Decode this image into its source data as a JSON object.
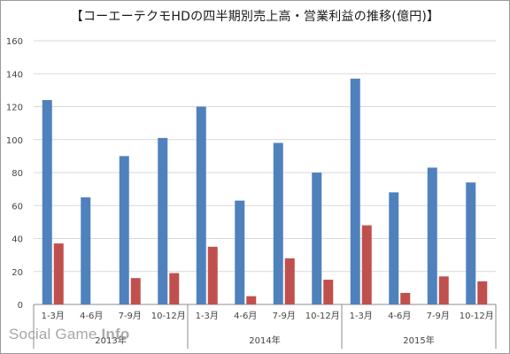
{
  "chart_data": {
    "type": "bar",
    "title": "【コーエーテクモHDの四半期別売上高・営業利益の推移(億円)】",
    "categories": [
      "1-3月",
      "4-6月",
      "7-9月",
      "10-12月",
      "1-3月",
      "4-6月",
      "7-9月",
      "10-12月",
      "1-3月",
      "4-6月",
      "7-9月",
      "10-12月"
    ],
    "groups": [
      {
        "label": "2013年",
        "span": 4
      },
      {
        "label": "2014年",
        "span": 4
      },
      {
        "label": "2015年",
        "span": 4
      }
    ],
    "series": [
      {
        "color": "#4f81bd",
        "values": [
          124,
          65,
          90,
          101,
          120,
          63,
          98,
          80,
          137,
          68,
          83,
          74
        ]
      },
      {
        "color": "#c0504d",
        "values": [
          37,
          0,
          16,
          19,
          35,
          5,
          28,
          15,
          48,
          7,
          17,
          14
        ]
      }
    ],
    "ylim": [
      0,
      160
    ],
    "yticks": [
      0,
      20,
      40,
      60,
      80,
      100,
      120,
      140,
      160
    ],
    "grid": true,
    "legend": "none"
  },
  "watermark": {
    "text_main": "Social Game ",
    "text_bold": "Info"
  }
}
